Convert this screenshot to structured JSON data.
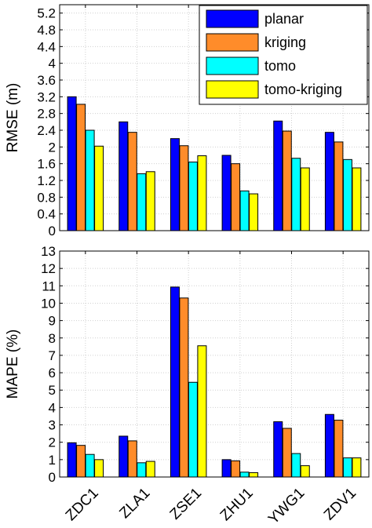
{
  "chart_data": [
    {
      "type": "bar",
      "ylabel": "RMSE (m)",
      "ylim": [
        0,
        5.4
      ],
      "yticks": [
        0,
        0.4,
        0.8,
        1.2,
        1.6,
        2,
        2.4,
        2.8,
        3.2,
        3.6,
        4,
        4.4,
        4.8,
        5.2
      ],
      "ytick_labels": [
        "0",
        "0.4",
        "0.8",
        "1.2",
        "1.6",
        "2",
        "2.4",
        "2.8",
        "3.2",
        "3.6",
        "4",
        "4.4",
        "4.8",
        "5.2"
      ],
      "grid": true,
      "legend": "top-right",
      "categories": [
        "ZDC1",
        "ZLA1",
        "ZSE1",
        "ZHU1",
        "YWG1",
        "ZDV1"
      ],
      "show_category_labels": false,
      "series": [
        {
          "name": "planar",
          "color": "#0000ff",
          "values": [
            3.2,
            2.6,
            2.2,
            1.8,
            2.62,
            2.35
          ]
        },
        {
          "name": "kriging",
          "color": "#ff8c2a",
          "values": [
            3.02,
            2.35,
            2.03,
            1.6,
            2.38,
            2.12
          ]
        },
        {
          "name": "tomo",
          "color": "#00ffff",
          "values": [
            2.4,
            1.36,
            1.64,
            0.95,
            1.73,
            1.7
          ]
        },
        {
          "name": "tomo-kriging",
          "color": "#ffff00",
          "values": [
            2.02,
            1.41,
            1.79,
            0.88,
            1.5,
            1.5
          ]
        }
      ]
    },
    {
      "type": "bar",
      "ylabel": "MAPE (%)",
      "ylim": [
        0,
        13
      ],
      "yticks": [
        0,
        1,
        2,
        3,
        4,
        5,
        6,
        7,
        8,
        9,
        10,
        11,
        12,
        13
      ],
      "ytick_labels": [
        "0",
        "1",
        "2",
        "3",
        "4",
        "5",
        "6",
        "7",
        "8",
        "9",
        "10",
        "11",
        "12",
        "13"
      ],
      "grid": true,
      "legend": "none",
      "categories": [
        "ZDC1",
        "ZLA1",
        "ZSE1",
        "ZHU1",
        "YWG1",
        "ZDV1"
      ],
      "show_category_labels": true,
      "series": [
        {
          "name": "planar",
          "color": "#0000ff",
          "values": [
            1.97,
            2.35,
            10.93,
            1.0,
            3.18,
            3.6
          ]
        },
        {
          "name": "kriging",
          "color": "#ff8c2a",
          "values": [
            1.82,
            2.08,
            10.3,
            0.93,
            2.8,
            3.27
          ]
        },
        {
          "name": "tomo",
          "color": "#00ffff",
          "values": [
            1.3,
            0.82,
            5.45,
            0.28,
            1.35,
            1.1
          ]
        },
        {
          "name": "tomo-kriging",
          "color": "#ffff00",
          "values": [
            1.0,
            0.9,
            7.55,
            0.25,
            0.65,
            1.1
          ]
        }
      ]
    }
  ]
}
